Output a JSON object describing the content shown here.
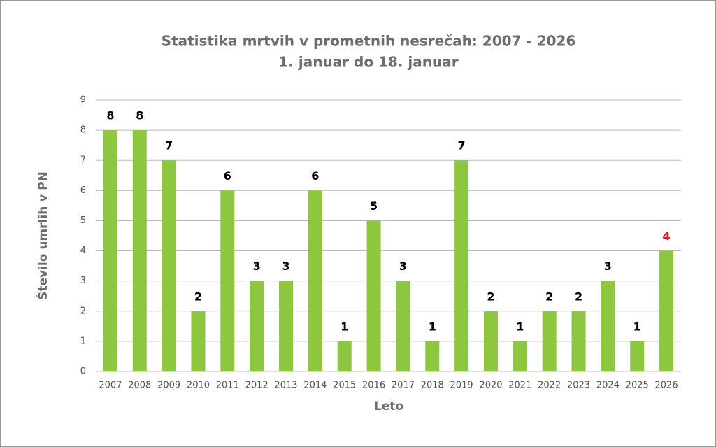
{
  "chart_data": {
    "type": "bar",
    "title": "Statistika mrtvih v prometnih nesrečah: 2007 - 2026",
    "subtitle": "1. januar do 18. januar",
    "x_label": "Leto",
    "y_label": "Število umrlih v PN",
    "categories": [
      "2007",
      "2008",
      "2009",
      "2010",
      "2011",
      "2012",
      "2013",
      "2014",
      "2015",
      "2016",
      "2017",
      "2018",
      "2019",
      "2020",
      "2021",
      "2022",
      "2023",
      "2024",
      "2025",
      "2026"
    ],
    "values": [
      8,
      8,
      7,
      2,
      6,
      3,
      3,
      6,
      1,
      5,
      3,
      1,
      7,
      2,
      1,
      2,
      2,
      3,
      1,
      4
    ],
    "value_label_colors": [
      "#000",
      "#000",
      "#000",
      "#000",
      "#000",
      "#000",
      "#000",
      "#000",
      "#000",
      "#000",
      "#000",
      "#000",
      "#000",
      "#000",
      "#000",
      "#000",
      "#000",
      "#000",
      "#000",
      "#e8141b"
    ],
    "color": "#8dc63f",
    "ylim": [
      0,
      9
    ],
    "yticks": [
      0,
      1,
      2,
      3,
      4,
      5,
      6,
      7,
      8,
      9
    ],
    "grid": true
  }
}
